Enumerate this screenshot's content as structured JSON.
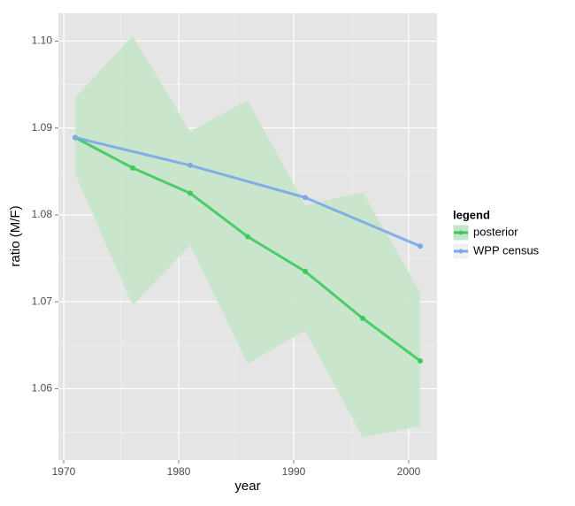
{
  "chart_data": {
    "type": "line",
    "xlabel": "year",
    "ylabel": "ratio (M/F)",
    "xlim": [
      1969.54,
      2002.46
    ],
    "ylim": [
      1.0518,
      1.1032
    ],
    "xticks": [
      1970,
      1980,
      1990,
      2000
    ],
    "yticks": [
      {
        "value": 1.1,
        "label": "1.10"
      },
      1.09,
      1.08,
      1.07,
      1.06
    ],
    "xminor": [
      1975,
      1985,
      1995
    ],
    "yminor": [
      1.095,
      1.085,
      1.075,
      1.065,
      1.055
    ],
    "grid": true,
    "legend_title": "legend",
    "legend_position": "right",
    "series": [
      {
        "name": "posterior",
        "color": "#3ec95f",
        "band_color": "#c5e5c9",
        "x": [
          1971,
          1976,
          1981,
          1986,
          1991,
          1996,
          2001
        ],
        "values": [
          1.0889,
          1.0854,
          1.0825,
          1.0775,
          1.0735,
          1.0681,
          1.0632
        ],
        "band": {
          "upper": [
            1.0935,
            1.1006,
            1.0896,
            1.0932,
            1.0811,
            1.0826,
            1.0711
          ],
          "lower": [
            1.0847,
            1.0696,
            1.0765,
            1.0629,
            1.0667,
            1.0544,
            1.0557
          ]
        }
      },
      {
        "name": "WPP census",
        "color": "#79a9e8",
        "x": [
          1971,
          1981,
          1991,
          2001
        ],
        "values": [
          1.0889,
          1.0857,
          1.082,
          1.0764
        ]
      }
    ]
  }
}
